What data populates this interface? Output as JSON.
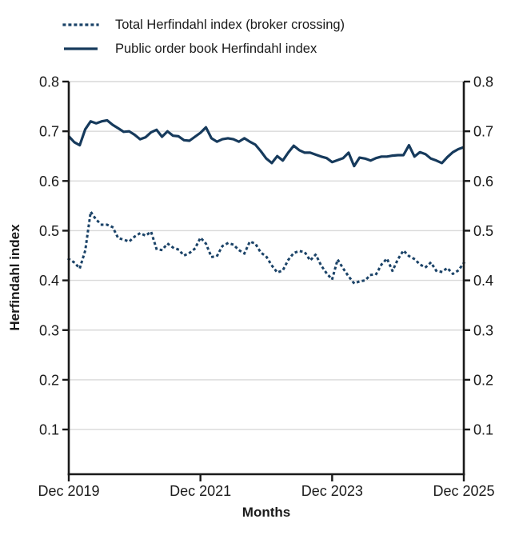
{
  "colors": {
    "gridline": "#d9d9d9",
    "axis": "#1a1a1a",
    "text": "#1a1a1a",
    "background": "#ffffff"
  },
  "chart_data": {
    "type": "line",
    "title": "",
    "xlabel": "Months",
    "ylabel": "Herfindahl index",
    "x_tick_labels": [
      "Dec 2019",
      "Dec 2021",
      "Dec 2023",
      "Dec 2025"
    ],
    "x_tick_positions": [
      0,
      24,
      48,
      72
    ],
    "x_range_months": 72,
    "y_ticks": [
      0.8,
      0.7,
      0.6,
      0.5,
      0.4,
      0.3,
      0.2,
      0.1
    ],
    "ylim": [
      0.01,
      0.8
    ],
    "grid": "horizontal",
    "legend_position": "top-left",
    "series": [
      {
        "name": "Total Herfindahl index (broker crossing)",
        "style": "dotted",
        "color": "#1b4368",
        "values": [
          0.443,
          0.436,
          0.424,
          0.46,
          0.538,
          0.522,
          0.512,
          0.512,
          0.507,
          0.485,
          0.482,
          0.478,
          0.488,
          0.495,
          0.49,
          0.498,
          0.463,
          0.461,
          0.474,
          0.466,
          0.462,
          0.45,
          0.455,
          0.464,
          0.486,
          0.474,
          0.447,
          0.449,
          0.469,
          0.475,
          0.472,
          0.461,
          0.454,
          0.478,
          0.474,
          0.456,
          0.448,
          0.43,
          0.416,
          0.42,
          0.441,
          0.455,
          0.459,
          0.457,
          0.44,
          0.452,
          0.43,
          0.414,
          0.402,
          0.442,
          0.424,
          0.408,
          0.394,
          0.398,
          0.4,
          0.411,
          0.412,
          0.432,
          0.444,
          0.419,
          0.443,
          0.46,
          0.449,
          0.443,
          0.432,
          0.426,
          0.436,
          0.419,
          0.417,
          0.425,
          0.413,
          0.42,
          0.435
        ]
      },
      {
        "name": "Public order book Herfindahl index",
        "style": "solid",
        "color": "#163a5c",
        "values": [
          0.69,
          0.678,
          0.672,
          0.704,
          0.72,
          0.716,
          0.72,
          0.722,
          0.713,
          0.706,
          0.699,
          0.7,
          0.693,
          0.684,
          0.688,
          0.698,
          0.703,
          0.689,
          0.7,
          0.691,
          0.69,
          0.682,
          0.681,
          0.689,
          0.697,
          0.708,
          0.686,
          0.679,
          0.684,
          0.686,
          0.684,
          0.679,
          0.686,
          0.679,
          0.673,
          0.66,
          0.645,
          0.636,
          0.65,
          0.641,
          0.657,
          0.671,
          0.662,
          0.657,
          0.657,
          0.653,
          0.649,
          0.646,
          0.638,
          0.642,
          0.646,
          0.657,
          0.63,
          0.647,
          0.645,
          0.641,
          0.646,
          0.649,
          0.649,
          0.651,
          0.652,
          0.652,
          0.672,
          0.649,
          0.658,
          0.654,
          0.645,
          0.641,
          0.636,
          0.648,
          0.658,
          0.664,
          0.668
        ]
      }
    ]
  }
}
